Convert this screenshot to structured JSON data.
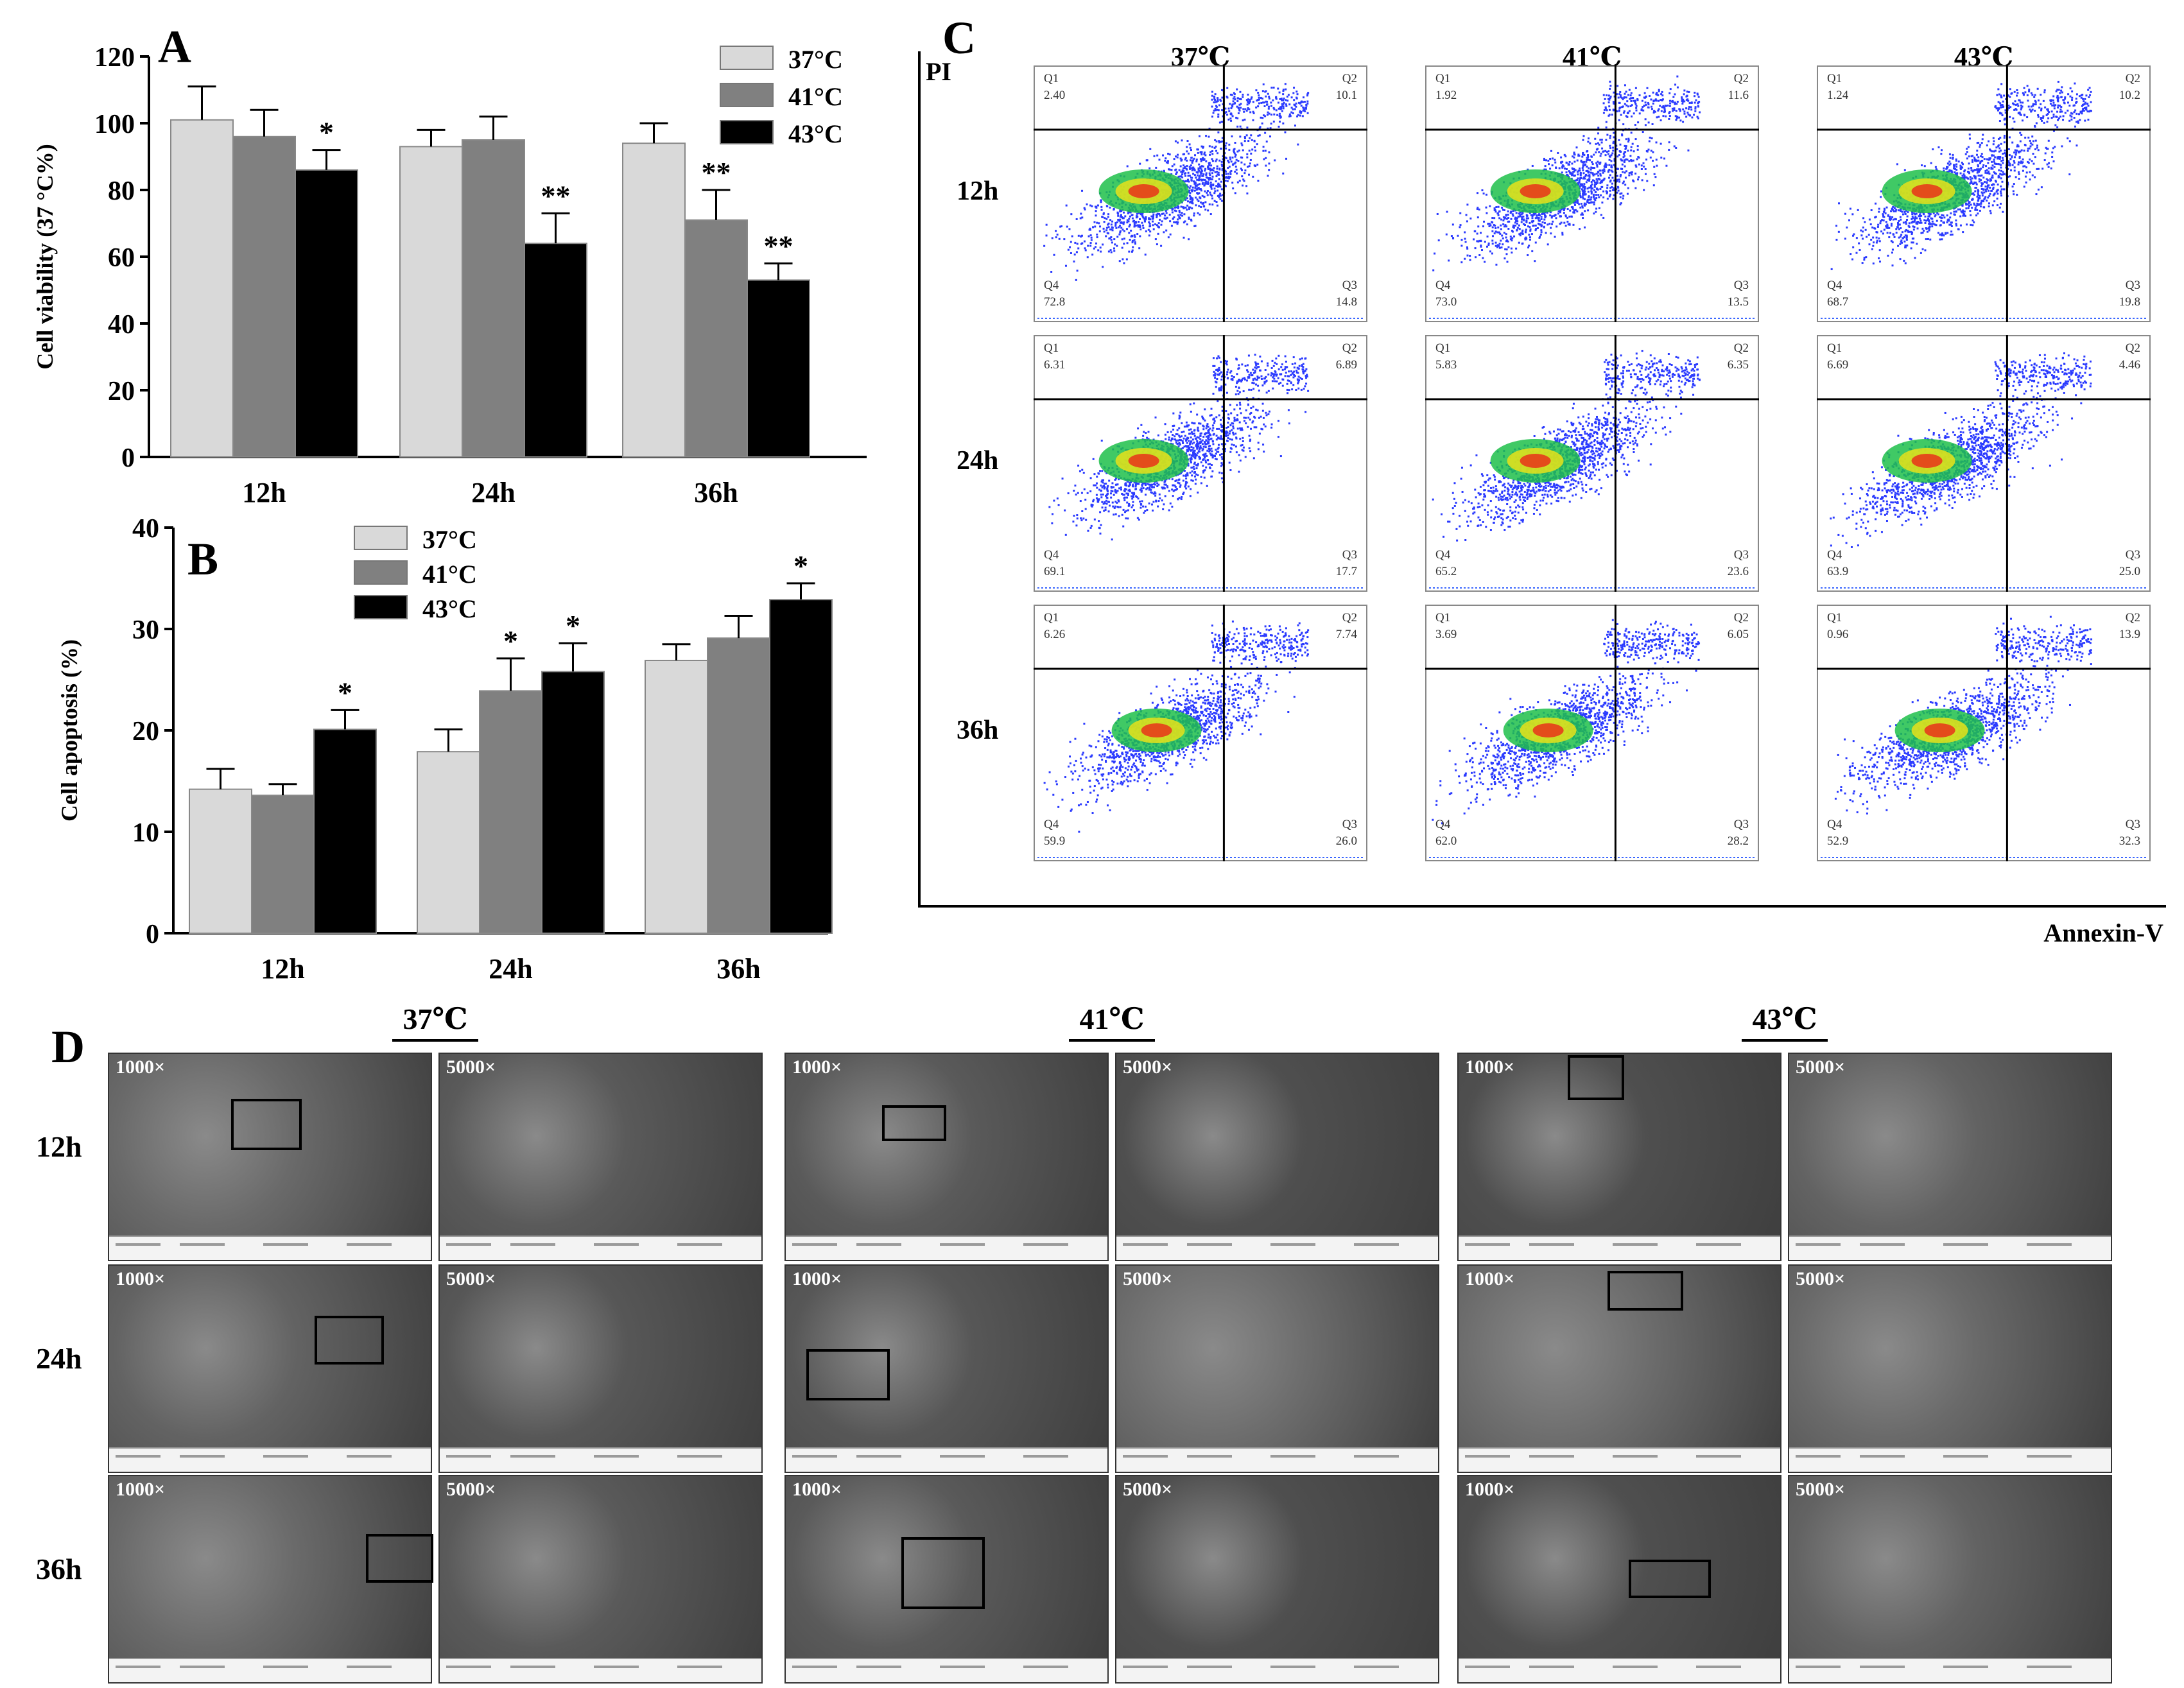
{
  "panels": {
    "a": "A",
    "b": "B",
    "c": "C",
    "d": "D"
  },
  "chart_data": [
    {
      "type": "bar",
      "panel": "A",
      "categories": [
        "12h",
        "24h",
        "36h"
      ],
      "series": [
        {
          "name": "37°C",
          "color": "#d9d9d9",
          "values": [
            101,
            93,
            94
          ],
          "errors": [
            10,
            5,
            6
          ],
          "sig": [
            "",
            "",
            ""
          ]
        },
        {
          "name": "41°C",
          "color": "#808080",
          "values": [
            96,
            95,
            71
          ],
          "errors": [
            8,
            7,
            9
          ],
          "sig": [
            "",
            "",
            "**"
          ]
        },
        {
          "name": "43°C",
          "color": "#000000",
          "values": [
            86,
            64,
            53
          ],
          "errors": [
            6,
            9,
            5
          ],
          "sig": [
            "*",
            "**",
            "**"
          ]
        }
      ],
      "ylabel": "Cell viability (37 °C%)",
      "ylim": [
        0,
        120
      ],
      "yticks": [
        "0",
        "20",
        "40",
        "60",
        "80",
        "100",
        "120"
      ],
      "legend_position": "top-right"
    },
    {
      "type": "bar",
      "panel": "B",
      "categories": [
        "12h",
        "24h",
        "36h"
      ],
      "series": [
        {
          "name": "37°C",
          "color": "#d9d9d9",
          "values": [
            14.2,
            17.9,
            26.9
          ],
          "errors": [
            2.0,
            2.2,
            1.6
          ],
          "sig": [
            "",
            "",
            ""
          ]
        },
        {
          "name": "41°C",
          "color": "#808080",
          "values": [
            13.6,
            23.9,
            29.1
          ],
          "errors": [
            1.1,
            3.2,
            2.2
          ],
          "sig": [
            "",
            "*",
            ""
          ]
        },
        {
          "name": "43°C",
          "color": "#000000",
          "values": [
            20.1,
            25.8,
            32.9
          ],
          "errors": [
            1.9,
            2.8,
            1.6
          ],
          "sig": [
            "*",
            "*",
            "*"
          ]
        }
      ],
      "ylabel": "Cell apoptosis (%)",
      "ylim": [
        0,
        40
      ],
      "yticks": [
        "0",
        "10",
        "20",
        "30",
        "40"
      ],
      "legend_position": "top-left"
    }
  ],
  "flow": {
    "y_axis_label": "PI",
    "x_axis_label": "Annexin-V",
    "columns": [
      "37℃",
      "41℃",
      "43℃"
    ],
    "rows": [
      "12h",
      "24h",
      "36h"
    ],
    "quadrant_names": [
      "Q1",
      "Q2",
      "Q3",
      "Q4"
    ],
    "cells": [
      [
        {
          "q1": "2.40",
          "q2": "10.1",
          "q3": "14.8",
          "q4": "72.8"
        },
        {
          "q1": "1.92",
          "q2": "11.6",
          "q3": "13.5",
          "q4": "73.0"
        },
        {
          "q1": "1.24",
          "q2": "10.2",
          "q3": "19.8",
          "q4": "68.7"
        }
      ],
      [
        {
          "q1": "6.31",
          "q2": "6.89",
          "q3": "17.7",
          "q4": "69.1"
        },
        {
          "q1": "5.83",
          "q2": "6.35",
          "q3": "23.6",
          "q4": "65.2"
        },
        {
          "q1": "6.69",
          "q2": "4.46",
          "q3": "25.0",
          "q4": "63.9"
        }
      ],
      [
        {
          "q1": "6.26",
          "q2": "7.74",
          "q3": "26.0",
          "q4": "59.9"
        },
        {
          "q1": "3.69",
          "q2": "6.05",
          "q3": "28.2",
          "q4": "62.0"
        },
        {
          "q1": "0.96",
          "q2": "13.9",
          "q3": "32.3",
          "q4": "52.9"
        }
      ]
    ]
  },
  "sem": {
    "columns": [
      "37℃",
      "41℃",
      "43℃"
    ],
    "rows": [
      "12h",
      "24h",
      "36h"
    ],
    "low_mag": "1000×",
    "high_mag": "5000×"
  }
}
